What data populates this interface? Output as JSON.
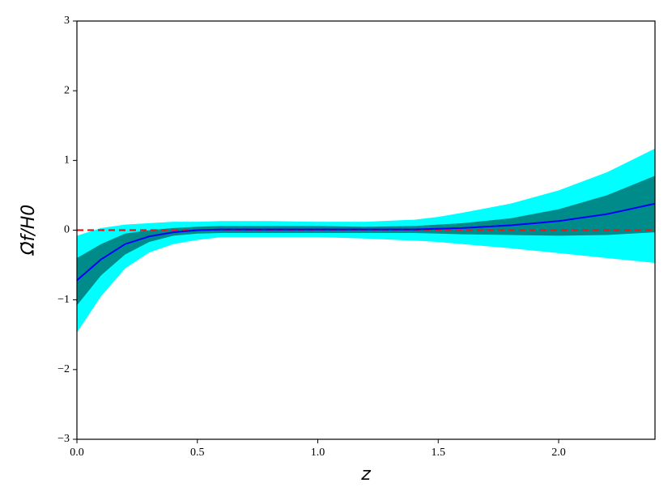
{
  "chart_data": {
    "type": "band-line",
    "xlabel": "z",
    "ylabel": "Ω̇f/H0",
    "x": [
      0,
      0.1,
      0.2,
      0.3,
      0.4,
      0.5,
      0.6,
      0.8,
      1.0,
      1.2,
      1.4,
      1.5,
      1.6,
      1.8,
      2.0,
      2.2,
      2.4
    ],
    "bands": [
      {
        "color": "#00ffff",
        "upper": [
          -0.08,
          0.03,
          0.08,
          0.1,
          0.12,
          0.12,
          0.13,
          0.13,
          0.12,
          0.12,
          0.15,
          0.19,
          0.25,
          0.38,
          0.57,
          0.83,
          1.17
        ],
        "lower": [
          -1.47,
          -0.95,
          -0.55,
          -0.32,
          -0.2,
          -0.14,
          -0.1,
          -0.1,
          -0.1,
          -0.12,
          -0.15,
          -0.17,
          -0.2,
          -0.26,
          -0.33,
          -0.4,
          -0.47
        ]
      },
      {
        "color": "#008b8b",
        "upper": [
          -0.4,
          -0.2,
          -0.05,
          0.0,
          0.03,
          0.05,
          0.06,
          0.06,
          0.06,
          0.05,
          0.06,
          0.08,
          0.1,
          0.17,
          0.3,
          0.5,
          0.78
        ],
        "lower": [
          -1.08,
          -0.65,
          -0.35,
          -0.17,
          -0.08,
          -0.05,
          -0.04,
          -0.04,
          -0.04,
          -0.04,
          -0.04,
          -0.05,
          -0.06,
          -0.07,
          -0.08,
          -0.07,
          -0.03
        ]
      }
    ],
    "series": [
      {
        "color": "#0000ff",
        "values": [
          -0.72,
          -0.42,
          -0.2,
          -0.09,
          -0.03,
          0.0,
          0.01,
          0.01,
          0.01,
          0.01,
          0.01,
          0.02,
          0.03,
          0.07,
          0.13,
          0.23,
          0.38
        ]
      }
    ],
    "hline": {
      "value": 0,
      "color": "#e41a1c"
    },
    "xlim": [
      0,
      2.4
    ],
    "xticks": [
      {
        "value": 0,
        "label": "0.0"
      },
      0.5,
      {
        "value": 1,
        "label": "1.0"
      },
      1.5,
      {
        "value": 2,
        "label": "2.0"
      }
    ],
    "ylim": [
      -3,
      3
    ],
    "yticks": [
      {
        "value": -3,
        "label": "−3"
      },
      {
        "value": -2,
        "label": "−2"
      },
      {
        "value": -1,
        "label": "−1"
      },
      0,
      1,
      2,
      3
    ]
  }
}
